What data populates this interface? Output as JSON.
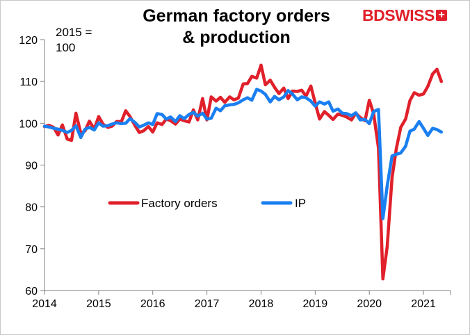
{
  "brand": {
    "logo_text_1": "BD",
    "logo_text_2": "SWISS",
    "logo_mark": "+"
  },
  "chart_data": {
    "type": "line",
    "title_line1": "German factory orders",
    "title_line2": "& production",
    "unit_note_line1": "2015 =",
    "unit_note_line2": "100",
    "xlim": [
      2014,
      2021.5
    ],
    "ylim": [
      60,
      120
    ],
    "x_ticks": [
      "2014",
      "2015",
      "2016",
      "2017",
      "2018",
      "2019",
      "2020",
      "2021"
    ],
    "y_ticks": [
      "120",
      "110",
      "100",
      "90",
      "80",
      "70",
      "60"
    ],
    "legend_position": "middle-left",
    "series": [
      {
        "name": "Factory orders",
        "color": "#e0202b",
        "points": [
          [
            2014.0,
            99.2
          ],
          [
            2014.08,
            99.5
          ],
          [
            2014.17,
            99.0
          ],
          [
            2014.25,
            97.2
          ],
          [
            2014.33,
            99.6
          ],
          [
            2014.42,
            96.2
          ],
          [
            2014.5,
            95.9
          ],
          [
            2014.58,
            102.4
          ],
          [
            2014.67,
            97.6
          ],
          [
            2014.75,
            98.2
          ],
          [
            2014.83,
            100.5
          ],
          [
            2014.92,
            98.6
          ],
          [
            2015.0,
            101.6
          ],
          [
            2015.08,
            99.8
          ],
          [
            2015.17,
            99.0
          ],
          [
            2015.25,
            99.3
          ],
          [
            2015.33,
            100.4
          ],
          [
            2015.42,
            100.4
          ],
          [
            2015.5,
            103.0
          ],
          [
            2015.58,
            101.6
          ],
          [
            2015.67,
            99.5
          ],
          [
            2015.75,
            97.8
          ],
          [
            2015.83,
            98.2
          ],
          [
            2015.92,
            99.2
          ],
          [
            2016.0,
            97.9
          ],
          [
            2016.08,
            100.1
          ],
          [
            2016.17,
            99.7
          ],
          [
            2016.25,
            101.0
          ],
          [
            2016.33,
            100.6
          ],
          [
            2016.42,
            99.8
          ],
          [
            2016.5,
            101.0
          ],
          [
            2016.58,
            100.6
          ],
          [
            2016.67,
            100.3
          ],
          [
            2016.75,
            103.2
          ],
          [
            2016.83,
            100.8
          ],
          [
            2016.92,
            105.9
          ],
          [
            2017.0,
            100.8
          ],
          [
            2017.08,
            106.3
          ],
          [
            2017.17,
            105.3
          ],
          [
            2017.25,
            106.2
          ],
          [
            2017.33,
            105.0
          ],
          [
            2017.42,
            106.3
          ],
          [
            2017.5,
            105.6
          ],
          [
            2017.58,
            106.0
          ],
          [
            2017.67,
            109.4
          ],
          [
            2017.75,
            109.5
          ],
          [
            2017.83,
            111.2
          ],
          [
            2017.92,
            110.8
          ],
          [
            2018.0,
            113.9
          ],
          [
            2018.08,
            109.2
          ],
          [
            2018.17,
            110.3
          ],
          [
            2018.25,
            108.6
          ],
          [
            2018.33,
            107.1
          ],
          [
            2018.42,
            108.4
          ],
          [
            2018.5,
            105.9
          ],
          [
            2018.58,
            107.7
          ],
          [
            2018.67,
            107.6
          ],
          [
            2018.75,
            107.9
          ],
          [
            2018.83,
            106.5
          ],
          [
            2018.92,
            108.9
          ],
          [
            2019.0,
            104.9
          ],
          [
            2019.08,
            101.0
          ],
          [
            2019.17,
            102.8
          ],
          [
            2019.25,
            101.9
          ],
          [
            2019.33,
            100.9
          ],
          [
            2019.42,
            102.2
          ],
          [
            2019.5,
            101.9
          ],
          [
            2019.58,
            101.5
          ],
          [
            2019.67,
            100.8
          ],
          [
            2019.75,
            102.4
          ],
          [
            2019.83,
            101.4
          ],
          [
            2019.92,
            100.6
          ],
          [
            2020.0,
            105.5
          ],
          [
            2020.08,
            102.3
          ],
          [
            2020.17,
            94.0
          ],
          [
            2020.25,
            62.8
          ],
          [
            2020.33,
            70.5
          ],
          [
            2020.42,
            87.0
          ],
          [
            2020.5,
            94.0
          ],
          [
            2020.58,
            99.0
          ],
          [
            2020.67,
            101.0
          ],
          [
            2020.75,
            105.4
          ],
          [
            2020.83,
            107.3
          ],
          [
            2020.92,
            106.7
          ],
          [
            2021.0,
            107.0
          ],
          [
            2021.08,
            108.8
          ],
          [
            2021.17,
            111.8
          ],
          [
            2021.25,
            112.9
          ],
          [
            2021.33,
            110.0
          ]
        ]
      },
      {
        "name": "IP",
        "color": "#1a7ff0",
        "points": [
          [
            2014.0,
            99.3
          ],
          [
            2014.08,
            99.1
          ],
          [
            2014.17,
            98.8
          ],
          [
            2014.25,
            98.6
          ],
          [
            2014.33,
            98.3
          ],
          [
            2014.42,
            97.8
          ],
          [
            2014.5,
            98.3
          ],
          [
            2014.58,
            99.4
          ],
          [
            2014.67,
            96.6
          ],
          [
            2014.75,
            98.6
          ],
          [
            2014.83,
            99.0
          ],
          [
            2014.92,
            98.4
          ],
          [
            2015.0,
            100.1
          ],
          [
            2015.08,
            99.3
          ],
          [
            2015.17,
            99.4
          ],
          [
            2015.25,
            99.8
          ],
          [
            2015.33,
            100.1
          ],
          [
            2015.42,
            99.9
          ],
          [
            2015.5,
            100.0
          ],
          [
            2015.58,
            101.1
          ],
          [
            2015.67,
            100.2
          ],
          [
            2015.75,
            99.1
          ],
          [
            2015.83,
            99.5
          ],
          [
            2015.92,
            100.1
          ],
          [
            2016.0,
            99.7
          ],
          [
            2016.08,
            102.3
          ],
          [
            2016.17,
            102.1
          ],
          [
            2016.25,
            101.0
          ],
          [
            2016.33,
            101.5
          ],
          [
            2016.42,
            100.4
          ],
          [
            2016.5,
            101.8
          ],
          [
            2016.58,
            101.1
          ],
          [
            2016.67,
            102.1
          ],
          [
            2016.75,
            102.6
          ],
          [
            2016.83,
            101.7
          ],
          [
            2016.92,
            102.4
          ],
          [
            2017.0,
            101.0
          ],
          [
            2017.08,
            101.2
          ],
          [
            2017.17,
            103.6
          ],
          [
            2017.25,
            103.0
          ],
          [
            2017.33,
            104.2
          ],
          [
            2017.42,
            104.4
          ],
          [
            2017.5,
            104.5
          ],
          [
            2017.58,
            104.9
          ],
          [
            2017.67,
            105.6
          ],
          [
            2017.75,
            106.1
          ],
          [
            2017.83,
            105.5
          ],
          [
            2017.92,
            108.1
          ],
          [
            2018.0,
            107.7
          ],
          [
            2018.08,
            106.9
          ],
          [
            2018.17,
            105.1
          ],
          [
            2018.25,
            106.4
          ],
          [
            2018.33,
            105.6
          ],
          [
            2018.42,
            106.3
          ],
          [
            2018.5,
            107.8
          ],
          [
            2018.58,
            107.0
          ],
          [
            2018.67,
            105.6
          ],
          [
            2018.75,
            106.3
          ],
          [
            2018.83,
            106.1
          ],
          [
            2018.92,
            105.3
          ],
          [
            2019.0,
            104.1
          ],
          [
            2019.08,
            105.1
          ],
          [
            2019.17,
            104.6
          ],
          [
            2019.25,
            105.1
          ],
          [
            2019.33,
            102.9
          ],
          [
            2019.42,
            103.4
          ],
          [
            2019.5,
            102.4
          ],
          [
            2019.58,
            102.3
          ],
          [
            2019.67,
            101.8
          ],
          [
            2019.75,
            102.5
          ],
          [
            2019.83,
            100.8
          ],
          [
            2019.92,
            100.9
          ],
          [
            2020.0,
            99.9
          ],
          [
            2020.08,
            102.8
          ],
          [
            2020.17,
            103.3
          ],
          [
            2020.25,
            77.2
          ],
          [
            2020.33,
            85.0
          ],
          [
            2020.42,
            92.2
          ],
          [
            2020.5,
            92.6
          ],
          [
            2020.58,
            92.9
          ],
          [
            2020.67,
            94.5
          ],
          [
            2020.75,
            98.1
          ],
          [
            2020.83,
            98.6
          ],
          [
            2020.92,
            100.4
          ],
          [
            2021.0,
            98.8
          ],
          [
            2021.08,
            97.1
          ],
          [
            2021.17,
            98.8
          ],
          [
            2021.25,
            98.5
          ],
          [
            2021.33,
            97.9
          ]
        ]
      }
    ]
  }
}
